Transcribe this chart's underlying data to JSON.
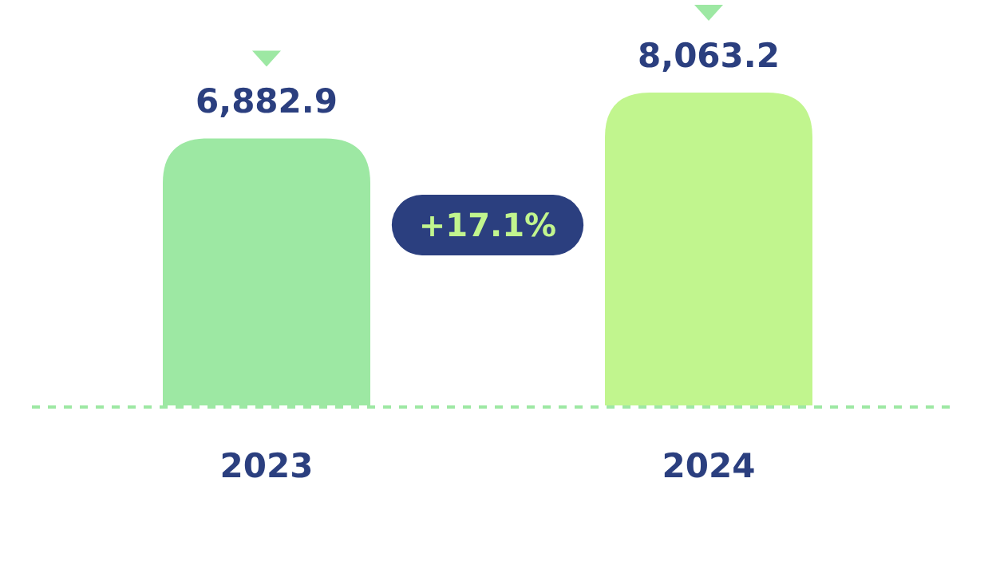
{
  "chart_data": {
    "type": "bar",
    "categories": [
      "2023",
      "2024"
    ],
    "values": [
      6882.9,
      8063.2
    ],
    "value_labels": [
      "6,882.9",
      "8,063.2"
    ],
    "colors": [
      "#9de8a3",
      "#c1f58e"
    ],
    "annotations": [
      "+17.1%"
    ]
  }
}
